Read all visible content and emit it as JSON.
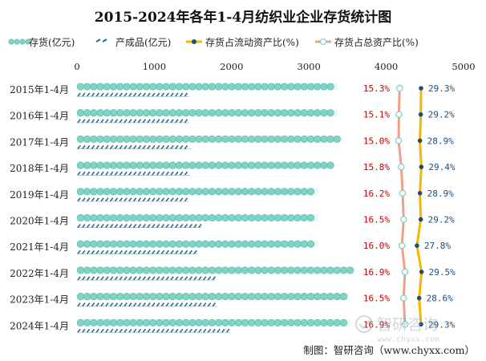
{
  "chart_data": {
    "type": "bar",
    "title": "2015-2024年各年1-4月纺织业企业存货统计图",
    "categories": [
      "2015年1-4月",
      "2016年1-4月",
      "2017年1-4月",
      "2018年1-4月",
      "2019年1-4月",
      "2020年1-4月",
      "2021年1-4月",
      "2022年1-4月",
      "2023年1-4月",
      "2024年1-4月"
    ],
    "x_ticks": [
      "0",
      "1000",
      "2000",
      "3000",
      "4000",
      "5000"
    ],
    "xlim": [
      0,
      5000
    ],
    "series": [
      {
        "name": "存货(亿元)",
        "type": "bar",
        "color": "#7fd3c7",
        "values": [
          3360,
          3360,
          3420,
          3300,
          3120,
          3120,
          3120,
          3560,
          3520,
          3530
        ]
      },
      {
        "name": "产成品(亿元)",
        "type": "bar",
        "color": "#2c6b8a",
        "values": [
          1450,
          1450,
          1480,
          1460,
          1450,
          1610,
          1550,
          1790,
          1810,
          1980
        ]
      },
      {
        "name": "存货占流动资产比(%)",
        "type": "line",
        "color": "#f7b500",
        "values": [
          29.3,
          29.2,
          28.9,
          29.4,
          28.9,
          29.2,
          27.8,
          29.5,
          28.6,
          29.3
        ],
        "labels": [
          "29.3%",
          "29.2%",
          "28.9%",
          "29.4%",
          "28.9%",
          "29.2%",
          "27.8%",
          "29.5%",
          "28.6%",
          "29.3%"
        ]
      },
      {
        "name": "存货占总资产比(%)",
        "type": "line",
        "color": "#f0a08a",
        "values": [
          15.3,
          15.1,
          15.0,
          15.8,
          16.2,
          16.5,
          16.0,
          16.9,
          16.5,
          16.9
        ],
        "labels": [
          "15.3%",
          "15.1%",
          "15.0%",
          "15.8%",
          "16.2%",
          "16.5%",
          "16.0%",
          "16.9%",
          "16.5%",
          "16.9%"
        ]
      }
    ],
    "grid": false,
    "legend_position": "top"
  },
  "footer": {
    "source": "制图：智研咨询（www.chyxx.com）"
  },
  "watermark": {
    "name": "智研咨询",
    "url": "www.chyxx.com"
  },
  "colors": {
    "label_red": "#c00000",
    "label_blue": "#1f4e79"
  }
}
